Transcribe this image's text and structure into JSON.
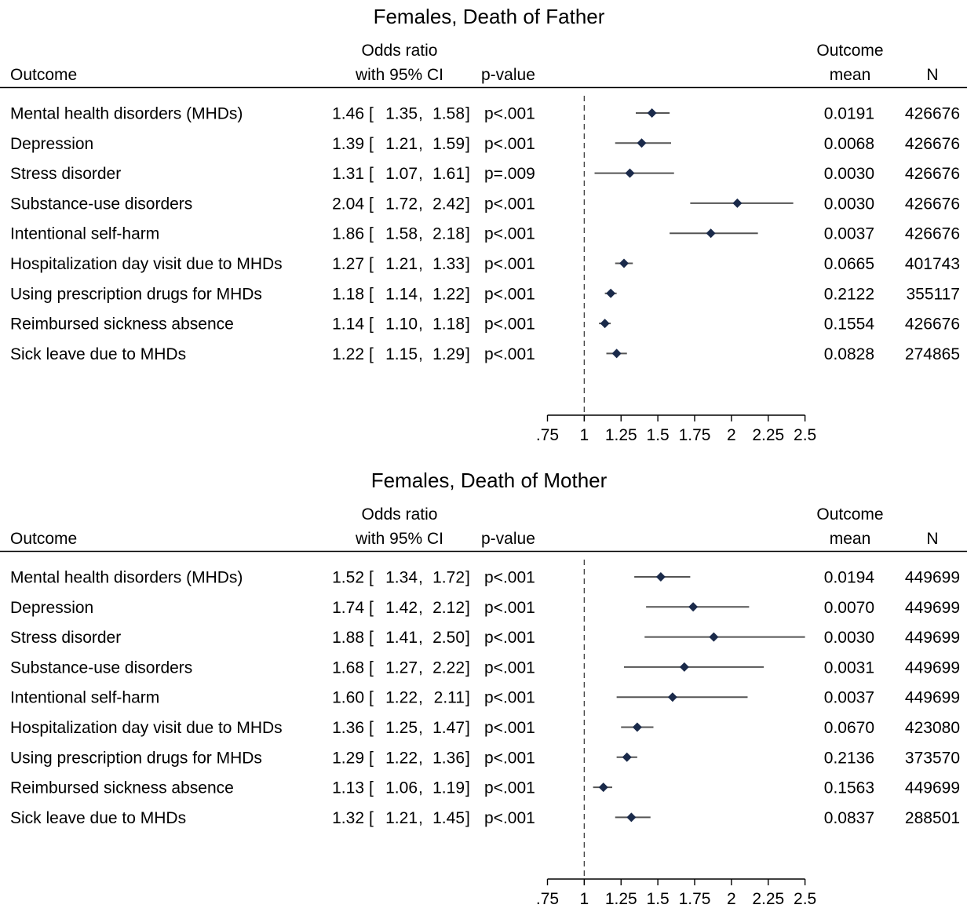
{
  "colors": {
    "marker": "#1a2a4a",
    "ci_line": "#555555",
    "ref_line": "#444444",
    "text": "#000000"
  },
  "headers": {
    "outcome": "Outcome",
    "or_line1": "Odds ratio",
    "or_line2": "with 95% CI",
    "pvalue": "p-value",
    "mean_line1": "Outcome",
    "mean_line2": "mean",
    "n": "N"
  },
  "chart_data": [
    {
      "type": "forest",
      "title": "Females, Death of Father",
      "reference_line": 1,
      "xlim": [
        0.75,
        2.5
      ],
      "x_ticks": [
        0.75,
        1,
        1.25,
        1.5,
        1.75,
        2,
        2.25,
        2.5
      ],
      "x_tick_labels": [
        ".75",
        "1",
        "1.25",
        "1.5",
        "1.75",
        "2",
        "2.25",
        "2.5"
      ],
      "rows": [
        {
          "outcome": "Mental health disorders (MHDs)",
          "or": 1.46,
          "lo": 1.35,
          "hi": 1.58,
          "or_text": "1.46",
          "lo_text": "1.35",
          "hi_text": "1.58",
          "p": "p<.001",
          "mean": "0.0191",
          "n": "426676"
        },
        {
          "outcome": "Depression",
          "or": 1.39,
          "lo": 1.21,
          "hi": 1.59,
          "or_text": "1.39",
          "lo_text": "1.21",
          "hi_text": "1.59",
          "p": "p<.001",
          "mean": "0.0068",
          "n": "426676"
        },
        {
          "outcome": "Stress disorder",
          "or": 1.31,
          "lo": 1.07,
          "hi": 1.61,
          "or_text": "1.31",
          "lo_text": "1.07",
          "hi_text": "1.61",
          "p": "p=.009",
          "mean": "0.0030",
          "n": "426676"
        },
        {
          "outcome": "Substance-use disorders",
          "or": 2.04,
          "lo": 1.72,
          "hi": 2.42,
          "or_text": "2.04",
          "lo_text": "1.72",
          "hi_text": "2.42",
          "p": "p<.001",
          "mean": "0.0030",
          "n": "426676"
        },
        {
          "outcome": "Intentional self-harm",
          "or": 1.86,
          "lo": 1.58,
          "hi": 2.18,
          "or_text": "1.86",
          "lo_text": "1.58",
          "hi_text": "2.18",
          "p": "p<.001",
          "mean": "0.0037",
          "n": "426676"
        },
        {
          "outcome": "Hospitalization day visit due to MHDs",
          "or": 1.27,
          "lo": 1.21,
          "hi": 1.33,
          "or_text": "1.27",
          "lo_text": "1.21",
          "hi_text": "1.33",
          "p": "p<.001",
          "mean": "0.0665",
          "n": "401743"
        },
        {
          "outcome": "Using prescription drugs for MHDs",
          "or": 1.18,
          "lo": 1.14,
          "hi": 1.22,
          "or_text": "1.18",
          "lo_text": "1.14",
          "hi_text": "1.22",
          "p": "p<.001",
          "mean": "0.2122",
          "n": "355117"
        },
        {
          "outcome": "Reimbursed sickness absence",
          "or": 1.14,
          "lo": 1.1,
          "hi": 1.18,
          "or_text": "1.14",
          "lo_text": "1.10",
          "hi_text": "1.18",
          "p": "p<.001",
          "mean": "0.1554",
          "n": "426676"
        },
        {
          "outcome": "Sick leave due to MHDs",
          "or": 1.22,
          "lo": 1.15,
          "hi": 1.29,
          "or_text": "1.22",
          "lo_text": "1.15",
          "hi_text": "1.29",
          "p": "p<.001",
          "mean": "0.0828",
          "n": "274865"
        }
      ]
    },
    {
      "type": "forest",
      "title": "Females, Death of Mother",
      "reference_line": 1,
      "xlim": [
        0.75,
        2.5
      ],
      "x_ticks": [
        0.75,
        1,
        1.25,
        1.5,
        1.75,
        2,
        2.25,
        2.5
      ],
      "x_tick_labels": [
        ".75",
        "1",
        "1.25",
        "1.5",
        "1.75",
        "2",
        "2.25",
        "2.5"
      ],
      "rows": [
        {
          "outcome": "Mental health disorders (MHDs)",
          "or": 1.52,
          "lo": 1.34,
          "hi": 1.72,
          "or_text": "1.52",
          "lo_text": "1.34",
          "hi_text": "1.72",
          "p": "p<.001",
          "mean": "0.0194",
          "n": "449699"
        },
        {
          "outcome": "Depression",
          "or": 1.74,
          "lo": 1.42,
          "hi": 2.12,
          "or_text": "1.74",
          "lo_text": "1.42",
          "hi_text": "2.12",
          "p": "p<.001",
          "mean": "0.0070",
          "n": "449699"
        },
        {
          "outcome": "Stress disorder",
          "or": 1.88,
          "lo": 1.41,
          "hi": 2.5,
          "or_text": "1.88",
          "lo_text": "1.41",
          "hi_text": "2.50",
          "p": "p<.001",
          "mean": "0.0030",
          "n": "449699"
        },
        {
          "outcome": "Substance-use disorders",
          "or": 1.68,
          "lo": 1.27,
          "hi": 2.22,
          "or_text": "1.68",
          "lo_text": "1.27",
          "hi_text": "2.22",
          "p": "p<.001",
          "mean": "0.0031",
          "n": "449699"
        },
        {
          "outcome": "Intentional self-harm",
          "or": 1.6,
          "lo": 1.22,
          "hi": 2.11,
          "or_text": "1.60",
          "lo_text": "1.22",
          "hi_text": "2.11",
          "p": "p<.001",
          "mean": "0.0037",
          "n": "449699"
        },
        {
          "outcome": "Hospitalization day visit due to MHDs",
          "or": 1.36,
          "lo": 1.25,
          "hi": 1.47,
          "or_text": "1.36",
          "lo_text": "1.25",
          "hi_text": "1.47",
          "p": "p<.001",
          "mean": "0.0670",
          "n": "423080"
        },
        {
          "outcome": "Using prescription drugs for MHDs",
          "or": 1.29,
          "lo": 1.22,
          "hi": 1.36,
          "or_text": "1.29",
          "lo_text": "1.22",
          "hi_text": "1.36",
          "p": "p<.001",
          "mean": "0.2136",
          "n": "373570"
        },
        {
          "outcome": "Reimbursed sickness absence",
          "or": 1.13,
          "lo": 1.06,
          "hi": 1.19,
          "or_text": "1.13",
          "lo_text": "1.06",
          "hi_text": "1.19",
          "p": "p<.001",
          "mean": "0.1563",
          "n": "449699"
        },
        {
          "outcome": "Sick leave due to MHDs",
          "or": 1.32,
          "lo": 1.21,
          "hi": 1.45,
          "or_text": "1.32",
          "lo_text": "1.21",
          "hi_text": "1.45",
          "p": "p<.001",
          "mean": "0.0837",
          "n": "288501"
        }
      ]
    }
  ]
}
